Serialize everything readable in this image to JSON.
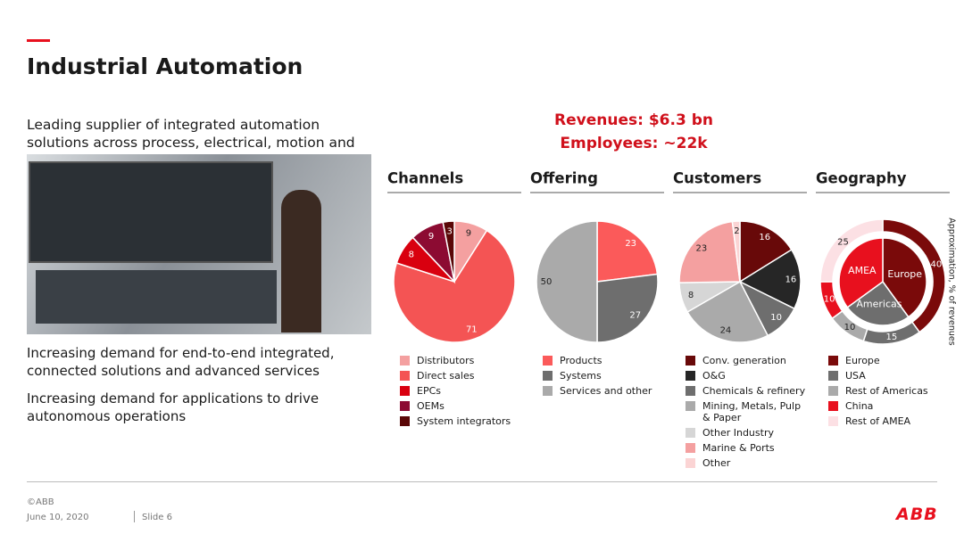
{
  "header": {
    "title": "Industrial Automation",
    "subtitle": "Leading supplier of integrated automation solutions across process, electrical, motion and digital",
    "kpis": [
      "Revenues: $6.3 bn",
      "Employees: ~22k"
    ]
  },
  "bullets": [
    "Increasing demand for end-to-end integrated, connected solutions and advanced services",
    "Increasing demand for applications to drive autonomous operations"
  ],
  "footer": {
    "copyright": "©ABB",
    "date": "June 10, 2020",
    "slide": "Slide 6",
    "logo": "ABB"
  },
  "chart_data": [
    {
      "type": "pie",
      "title": "Channels",
      "categories": [
        "Distributors",
        "Direct sales",
        "EPCs",
        "OEMs",
        "System integrators"
      ],
      "values": [
        9,
        71,
        8,
        9,
        3
      ],
      "colors": [
        "#f4a0a0",
        "#f45454",
        "#d9000f",
        "#8c0b32",
        "#5a0707"
      ]
    },
    {
      "type": "pie",
      "title": "Offering",
      "categories": [
        "Products",
        "Systems",
        "Services and other"
      ],
      "values": [
        23,
        27,
        50
      ],
      "colors": [
        "#fb5a5a",
        "#6e6e6e",
        "#aaaaaa"
      ]
    },
    {
      "type": "pie",
      "title": "Customers",
      "categories": [
        "Conv. generation",
        "O&G",
        "Chemicals & refinery",
        "Mining, Metals, Pulp & Paper",
        "Other Industry",
        "Marine & Ports",
        "Other"
      ],
      "values": [
        16,
        16,
        10,
        24,
        8,
        23,
        2
      ],
      "colors": [
        "#680909",
        "#262626",
        "#6e6e6e",
        "#aaaaaa",
        "#d6d6d6",
        "#f4a0a0",
        "#fbd4d4"
      ]
    },
    {
      "type": "donut",
      "title": "Geography",
      "categories": [
        "Europe",
        "USA",
        "Rest of Americas",
        "China",
        "Rest of AMEA"
      ],
      "values": [
        40,
        15,
        10,
        10,
        25
      ],
      "colors": [
        "#7a0a0a",
        "#6e6e6e",
        "#aaaaaa",
        "#e8101e",
        "#fce0e4"
      ],
      "inner": {
        "categories": [
          "Europe",
          "Americas",
          "AMEA"
        ],
        "values": [
          40,
          25,
          35
        ],
        "colors": [
          "#7a0a0a",
          "#6e6e6e",
          "#e8101e"
        ]
      },
      "axis_label": "Approximation, % of revenues"
    }
  ]
}
